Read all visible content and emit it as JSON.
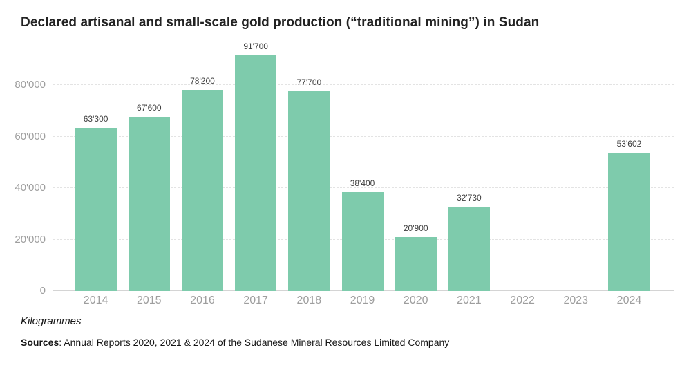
{
  "title": "Declared artisanal and small-scale gold production (“traditional mining”) in Sudan",
  "footer": {
    "unit_label": "Kilogrammes",
    "sources_label": "Sources",
    "sources_text": ": Annual Reports 2020, 2021 & 2024 of the Sudanese Mineral Resources Limited Company"
  },
  "colors": {
    "bar": "#7ECBAC",
    "grid": "#E3E3E3",
    "baseline": "#D4D4D4",
    "axis_text": "#9E9E9E",
    "value_text": "#3F3F3F",
    "title_text": "#222222"
  },
  "chart_data": {
    "type": "bar",
    "title": "Declared artisanal and small-scale gold production (“traditional mining”) in Sudan",
    "categories": [
      "2014",
      "2015",
      "2016",
      "2017",
      "2018",
      "2019",
      "2020",
      "2021",
      "2022",
      "2023",
      "2024"
    ],
    "values": [
      63300,
      67600,
      78200,
      91700,
      77700,
      38400,
      20900,
      32730,
      null,
      null,
      53602
    ],
    "value_labels": [
      "63'300",
      "67'600",
      "78'200",
      "91'700",
      "77'700",
      "38'400",
      "20'900",
      "32'730",
      "",
      "",
      "53'602"
    ],
    "xlabel": "",
    "ylabel": "Kilogrammes",
    "yticks": [
      0,
      20000,
      40000,
      60000,
      80000
    ],
    "ytick_labels": [
      "0",
      "20'000",
      "40'000",
      "60'000",
      "80'000"
    ],
    "ylim": [
      0,
      95600
    ],
    "grid": true,
    "legend": "none",
    "bar_color": "#7ECBAC"
  }
}
